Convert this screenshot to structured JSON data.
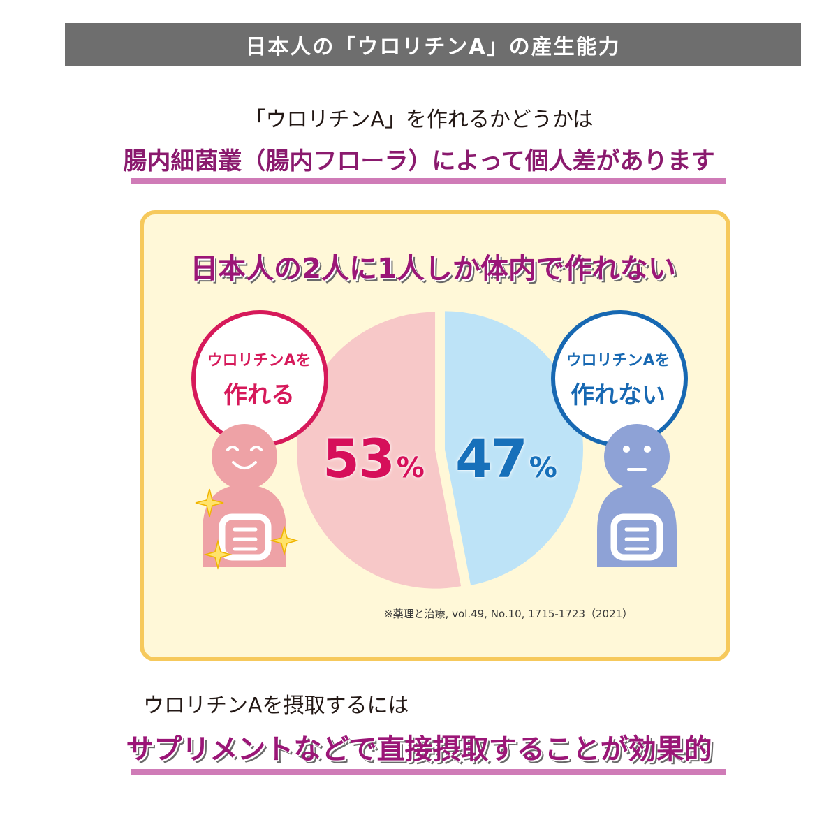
{
  "header": {
    "title": "日本人の「ウロリチンA」の産生能力"
  },
  "intro": {
    "lead": "「ウロリチンA」を作れるかどうかは",
    "headline": "腸内細菌叢（腸内フローラ）によって個人差があります"
  },
  "panel": {
    "title": "日本人の2人に1人しか体内で作れない",
    "left_bubble": {
      "small": "ウロリチンAを",
      "big": "作れる"
    },
    "right_bubble": {
      "small": "ウロリチンAを",
      "big": "作れない"
    },
    "note": "※薬理と治療, vol.49, No.10, 1715-1723（2021）"
  },
  "chart_data": {
    "type": "pie",
    "categories": [
      "ウロリチンAを作れる",
      "ウロリチンAを作れない"
    ],
    "values": [
      53,
      47
    ],
    "value_labels": [
      "53",
      "47"
    ],
    "unit": "%",
    "colors": [
      "#f7c8c8",
      "#bde3f7"
    ],
    "label_colors": [
      "#d60f5a",
      "#1770ba"
    ]
  },
  "footer": {
    "lead": "ウロリチンAを摂取するには",
    "headline": "サプリメントなどで直接摂取することが効果的"
  },
  "colors": {
    "title_bar": "#6e6e6e",
    "headline": "#8a1a6e",
    "underline": "#cf7bb7",
    "panel_bg": "#fff8d8",
    "panel_border": "#f6c95c",
    "left_person": "#eea2a6",
    "right_person": "#8ea2d6"
  }
}
